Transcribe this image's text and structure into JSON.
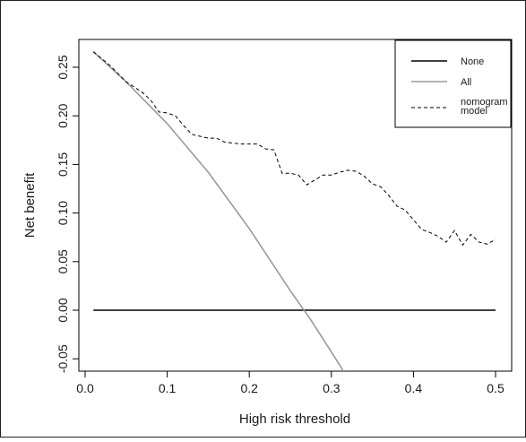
{
  "chart_data": {
    "type": "line",
    "title": "",
    "xlabel": "High risk threshold",
    "ylabel": "Net benefit",
    "xlim": [
      0.0,
      0.52
    ],
    "ylim": [
      -0.06,
      0.27
    ],
    "x_ticks": [
      0.0,
      0.1,
      0.2,
      0.3,
      0.4,
      0.5
    ],
    "x_tick_labels": [
      "0.0",
      "0.1",
      "0.2",
      "0.3",
      "0.4",
      "0.5"
    ],
    "y_ticks": [
      -0.05,
      0.0,
      0.05,
      0.1,
      0.15,
      0.2,
      0.25
    ],
    "y_tick_labels": [
      "-0.05",
      "0.00",
      "0.05",
      "0.10",
      "0.15",
      "0.20",
      "0.25"
    ],
    "grid": false,
    "legend_position": "top-right",
    "legend": [
      {
        "label": "None"
      },
      {
        "label": "All"
      },
      {
        "label": "nomogram\nmodel"
      }
    ],
    "series": [
      {
        "name": "None",
        "color": "#000000",
        "line_style": "solid",
        "x": [
          0.01,
          0.5
        ],
        "y": [
          0.0,
          0.0
        ]
      },
      {
        "name": "All",
        "color": "#9a9a9a",
        "line_style": "solid",
        "x": [
          0.01,
          0.05,
          0.1,
          0.15,
          0.2,
          0.25,
          0.275,
          0.3,
          0.315
        ],
        "y": [
          0.266,
          0.235,
          0.192,
          0.142,
          0.084,
          0.02,
          -0.01,
          -0.043,
          -0.063
        ]
      },
      {
        "name": "nomogram model",
        "color": "#000000",
        "line_style": "dashed",
        "x": [
          0.01,
          0.03,
          0.05,
          0.07,
          0.08,
          0.09,
          0.1,
          0.11,
          0.12,
          0.13,
          0.14,
          0.15,
          0.16,
          0.17,
          0.18,
          0.19,
          0.2,
          0.21,
          0.22,
          0.23,
          0.24,
          0.25,
          0.26,
          0.27,
          0.28,
          0.29,
          0.3,
          0.31,
          0.32,
          0.33,
          0.34,
          0.35,
          0.36,
          0.37,
          0.38,
          0.39,
          0.4,
          0.41,
          0.42,
          0.43,
          0.44,
          0.45,
          0.46,
          0.47,
          0.48,
          0.49,
          0.5
        ],
        "y": [
          0.266,
          0.252,
          0.235,
          0.224,
          0.216,
          0.204,
          0.203,
          0.2,
          0.19,
          0.181,
          0.179,
          0.177,
          0.177,
          0.173,
          0.172,
          0.171,
          0.171,
          0.171,
          0.166,
          0.165,
          0.141,
          0.141,
          0.139,
          0.129,
          0.134,
          0.139,
          0.139,
          0.142,
          0.144,
          0.143,
          0.138,
          0.13,
          0.127,
          0.118,
          0.107,
          0.103,
          0.093,
          0.083,
          0.08,
          0.076,
          0.07,
          0.082,
          0.067,
          0.078,
          0.07,
          0.068,
          0.073
        ]
      }
    ]
  }
}
